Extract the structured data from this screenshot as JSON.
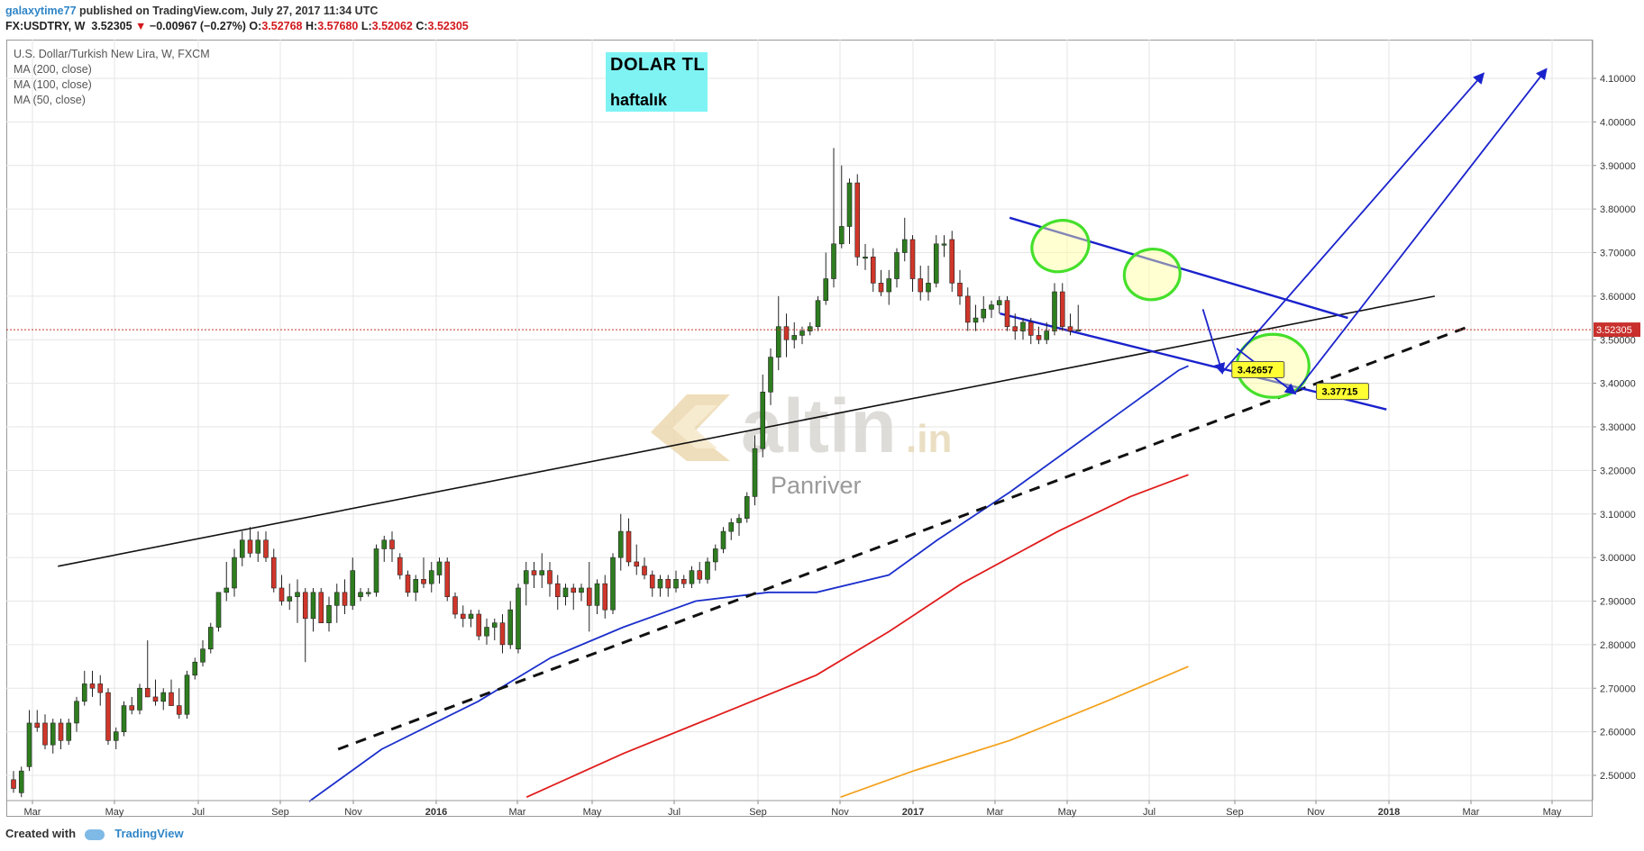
{
  "header": {
    "author": "galaxytime77",
    "published": "published on TradingView.com, July 27, 2017 11:34 UTC"
  },
  "quote": {
    "symbol": "FX:USDTRY, W",
    "last": "3.52305",
    "arrow": "▼",
    "change": "−0.00967 (−0.27%)",
    "o_label": "O:",
    "o": "3.52768",
    "h_label": "H:",
    "h": "3.57680",
    "l_label": "L:",
    "l": "3.52062",
    "c_label": "C:",
    "c": "3.52305"
  },
  "legend": {
    "title": "U.S. Dollar/Turkish New Lira, W, FXCM",
    "ma200": "MA (200, close)",
    "ma100": "MA (100, close)",
    "ma50": "MA (50, close)"
  },
  "annotation": {
    "line1": "DOLAR  TL",
    "line2": "haftalık"
  },
  "footer": {
    "created_with": "Created with",
    "brand": "TradingView"
  },
  "watermark": {
    "brand": "altin",
    "suffix": ".in",
    "sub": "Panriver"
  },
  "colors": {
    "up": "#2e7d1f",
    "down": "#d0362a",
    "ma50": "#1b2fcc",
    "ma100": "#e01c1c",
    "ma200": "#f4a21e",
    "drawing": "#1a22cc",
    "highlight": "#45e02b",
    "price_line": "#c0392b"
  },
  "chart_data": {
    "type": "candlestick",
    "symbol": "FX:USDTRY",
    "interval": "W",
    "y_axis": {
      "min": 2.45,
      "max": 4.15,
      "ticks": [
        "2.50000",
        "2.60000",
        "2.70000",
        "2.80000",
        "2.90000",
        "3.00000",
        "3.10000",
        "3.20000",
        "3.30000",
        "3.40000",
        "3.50000",
        "3.60000",
        "3.70000",
        "3.80000",
        "3.90000",
        "4.00000",
        "4.10000"
      ],
      "last_price_label": "3.52305"
    },
    "x_axis": {
      "labels": [
        "Mar",
        "May",
        "Jul",
        "Sep",
        "Nov",
        "2016",
        "Mar",
        "May",
        "Jul",
        "Sep",
        "Nov",
        "2017",
        "Mar",
        "May",
        "Jul",
        "Sep",
        "Nov",
        "2018",
        "Mar",
        "May"
      ],
      "bold_labels": [
        "2016",
        "2017",
        "2018"
      ]
    },
    "candles": [
      {
        "o": 2.49,
        "h": 2.51,
        "l": 2.46,
        "c": 2.47
      },
      {
        "o": 2.46,
        "h": 2.52,
        "l": 2.45,
        "c": 2.51
      },
      {
        "o": 2.52,
        "h": 2.65,
        "l": 2.51,
        "c": 2.62
      },
      {
        "o": 2.62,
        "h": 2.65,
        "l": 2.6,
        "c": 2.61
      },
      {
        "o": 2.62,
        "h": 2.64,
        "l": 2.56,
        "c": 2.57
      },
      {
        "o": 2.57,
        "h": 2.63,
        "l": 2.55,
        "c": 2.62
      },
      {
        "o": 2.62,
        "h": 2.63,
        "l": 2.56,
        "c": 2.58
      },
      {
        "o": 2.58,
        "h": 2.63,
        "l": 2.57,
        "c": 2.62
      },
      {
        "o": 2.62,
        "h": 2.68,
        "l": 2.6,
        "c": 2.67
      },
      {
        "o": 2.67,
        "h": 2.74,
        "l": 2.66,
        "c": 2.71
      },
      {
        "o": 2.71,
        "h": 2.74,
        "l": 2.68,
        "c": 2.7
      },
      {
        "o": 2.71,
        "h": 2.73,
        "l": 2.66,
        "c": 2.69
      },
      {
        "o": 2.69,
        "h": 2.7,
        "l": 2.57,
        "c": 2.58
      },
      {
        "o": 2.58,
        "h": 2.61,
        "l": 2.56,
        "c": 2.6
      },
      {
        "o": 2.6,
        "h": 2.67,
        "l": 2.59,
        "c": 2.66
      },
      {
        "o": 2.66,
        "h": 2.68,
        "l": 2.64,
        "c": 2.65
      },
      {
        "o": 2.65,
        "h": 2.71,
        "l": 2.64,
        "c": 2.7
      },
      {
        "o": 2.7,
        "h": 2.81,
        "l": 2.68,
        "c": 2.68
      },
      {
        "o": 2.68,
        "h": 2.72,
        "l": 2.66,
        "c": 2.67
      },
      {
        "o": 2.67,
        "h": 2.7,
        "l": 2.65,
        "c": 2.69
      },
      {
        "o": 2.69,
        "h": 2.72,
        "l": 2.66,
        "c": 2.66
      },
      {
        "o": 2.66,
        "h": 2.7,
        "l": 2.63,
        "c": 2.64
      },
      {
        "o": 2.64,
        "h": 2.74,
        "l": 2.63,
        "c": 2.73
      },
      {
        "o": 2.73,
        "h": 2.77,
        "l": 2.72,
        "c": 2.76
      },
      {
        "o": 2.76,
        "h": 2.81,
        "l": 2.75,
        "c": 2.79
      },
      {
        "o": 2.79,
        "h": 2.85,
        "l": 2.78,
        "c": 2.84
      },
      {
        "o": 2.84,
        "h": 2.92,
        "l": 2.83,
        "c": 2.92
      },
      {
        "o": 2.92,
        "h": 2.99,
        "l": 2.9,
        "c": 2.93
      },
      {
        "o": 2.93,
        "h": 3.02,
        "l": 2.91,
        "c": 3.0
      },
      {
        "o": 3.0,
        "h": 3.06,
        "l": 2.98,
        "c": 3.04
      },
      {
        "o": 3.04,
        "h": 3.07,
        "l": 3.0,
        "c": 3.01
      },
      {
        "o": 3.01,
        "h": 3.06,
        "l": 2.99,
        "c": 3.04
      },
      {
        "o": 3.04,
        "h": 3.06,
        "l": 2.99,
        "c": 3.0
      },
      {
        "o": 3.0,
        "h": 3.02,
        "l": 2.92,
        "c": 2.93
      },
      {
        "o": 2.93,
        "h": 2.96,
        "l": 2.89,
        "c": 2.9
      },
      {
        "o": 2.9,
        "h": 2.94,
        "l": 2.88,
        "c": 2.91
      },
      {
        "o": 2.91,
        "h": 2.95,
        "l": 2.85,
        "c": 2.92
      },
      {
        "o": 2.92,
        "h": 2.93,
        "l": 2.76,
        "c": 2.86
      },
      {
        "o": 2.86,
        "h": 2.93,
        "l": 2.83,
        "c": 2.92
      },
      {
        "o": 2.92,
        "h": 2.93,
        "l": 2.85,
        "c": 2.85
      },
      {
        "o": 2.85,
        "h": 2.91,
        "l": 2.83,
        "c": 2.89
      },
      {
        "o": 2.89,
        "h": 2.94,
        "l": 2.85,
        "c": 2.92
      },
      {
        "o": 2.92,
        "h": 2.95,
        "l": 2.87,
        "c": 2.89
      },
      {
        "o": 2.89,
        "h": 3.0,
        "l": 2.88,
        "c": 2.97
      },
      {
        "o": 2.91,
        "h": 2.93,
        "l": 2.9,
        "c": 2.92
      },
      {
        "o": 2.92,
        "h": 2.93,
        "l": 2.91,
        "c": 2.92
      },
      {
        "o": 2.92,
        "h": 3.03,
        "l": 2.91,
        "c": 3.02
      },
      {
        "o": 3.02,
        "h": 3.05,
        "l": 2.99,
        "c": 3.04
      },
      {
        "o": 3.04,
        "h": 3.06,
        "l": 2.99,
        "c": 3.02
      },
      {
        "o": 3.0,
        "h": 3.01,
        "l": 2.95,
        "c": 2.96
      },
      {
        "o": 2.96,
        "h": 2.97,
        "l": 2.91,
        "c": 2.92
      },
      {
        "o": 2.92,
        "h": 2.96,
        "l": 2.9,
        "c": 2.95
      },
      {
        "o": 2.95,
        "h": 3.0,
        "l": 2.93,
        "c": 2.94
      },
      {
        "o": 2.94,
        "h": 2.99,
        "l": 2.92,
        "c": 2.97
      },
      {
        "o": 2.96,
        "h": 3.0,
        "l": 2.94,
        "c": 2.99
      },
      {
        "o": 2.99,
        "h": 3.0,
        "l": 2.9,
        "c": 2.91
      },
      {
        "o": 2.91,
        "h": 2.92,
        "l": 2.86,
        "c": 2.87
      },
      {
        "o": 2.87,
        "h": 2.89,
        "l": 2.84,
        "c": 2.86
      },
      {
        "o": 2.86,
        "h": 2.88,
        "l": 2.84,
        "c": 2.87
      },
      {
        "o": 2.87,
        "h": 2.88,
        "l": 2.81,
        "c": 2.82
      },
      {
        "o": 2.82,
        "h": 2.86,
        "l": 2.8,
        "c": 2.84
      },
      {
        "o": 2.84,
        "h": 2.86,
        "l": 2.81,
        "c": 2.85
      },
      {
        "o": 2.85,
        "h": 2.87,
        "l": 2.78,
        "c": 2.8
      },
      {
        "o": 2.8,
        "h": 2.9,
        "l": 2.79,
        "c": 2.88
      },
      {
        "o": 2.79,
        "h": 2.94,
        "l": 2.78,
        "c": 2.93
      },
      {
        "o": 2.94,
        "h": 2.99,
        "l": 2.89,
        "c": 2.97
      },
      {
        "o": 2.97,
        "h": 2.99,
        "l": 2.93,
        "c": 2.96
      },
      {
        "o": 2.96,
        "h": 3.01,
        "l": 2.93,
        "c": 2.97
      },
      {
        "o": 2.97,
        "h": 2.99,
        "l": 2.91,
        "c": 2.94
      },
      {
        "o": 2.94,
        "h": 2.96,
        "l": 2.88,
        "c": 2.91
      },
      {
        "o": 2.91,
        "h": 2.94,
        "l": 2.89,
        "c": 2.93
      },
      {
        "o": 2.93,
        "h": 2.94,
        "l": 2.88,
        "c": 2.92
      },
      {
        "o": 2.92,
        "h": 2.94,
        "l": 2.9,
        "c": 2.93
      },
      {
        "o": 2.93,
        "h": 2.99,
        "l": 2.83,
        "c": 2.89
      },
      {
        "o": 2.89,
        "h": 2.95,
        "l": 2.87,
        "c": 2.94
      },
      {
        "o": 2.94,
        "h": 2.96,
        "l": 2.86,
        "c": 2.88
      },
      {
        "o": 2.88,
        "h": 3.01,
        "l": 2.87,
        "c": 3.0
      },
      {
        "o": 3.0,
        "h": 3.1,
        "l": 2.97,
        "c": 3.06
      },
      {
        "o": 3.06,
        "h": 3.09,
        "l": 2.98,
        "c": 2.99
      },
      {
        "o": 2.99,
        "h": 3.03,
        "l": 2.96,
        "c": 2.98
      },
      {
        "o": 2.98,
        "h": 3.0,
        "l": 2.95,
        "c": 2.96
      },
      {
        "o": 2.96,
        "h": 2.97,
        "l": 2.91,
        "c": 2.93
      },
      {
        "o": 2.93,
        "h": 2.96,
        "l": 2.91,
        "c": 2.95
      },
      {
        "o": 2.95,
        "h": 2.96,
        "l": 2.91,
        "c": 2.93
      },
      {
        "o": 2.93,
        "h": 2.97,
        "l": 2.92,
        "c": 2.95
      },
      {
        "o": 2.95,
        "h": 2.96,
        "l": 2.93,
        "c": 2.94
      },
      {
        "o": 2.94,
        "h": 2.98,
        "l": 2.93,
        "c": 2.97
      },
      {
        "o": 2.97,
        "h": 2.99,
        "l": 2.94,
        "c": 2.95
      },
      {
        "o": 2.95,
        "h": 3.0,
        "l": 2.94,
        "c": 2.99
      },
      {
        "o": 2.99,
        "h": 3.03,
        "l": 2.97,
        "c": 3.02
      },
      {
        "o": 3.02,
        "h": 3.07,
        "l": 3.01,
        "c": 3.06
      },
      {
        "o": 3.06,
        "h": 3.09,
        "l": 3.04,
        "c": 3.08
      },
      {
        "o": 3.08,
        "h": 3.1,
        "l": 3.05,
        "c": 3.09
      },
      {
        "o": 3.09,
        "h": 3.15,
        "l": 3.08,
        "c": 3.14
      },
      {
        "o": 3.14,
        "h": 3.28,
        "l": 3.12,
        "c": 3.25
      },
      {
        "o": 3.25,
        "h": 3.42,
        "l": 3.23,
        "c": 3.38
      },
      {
        "o": 3.38,
        "h": 3.48,
        "l": 3.35,
        "c": 3.46
      },
      {
        "o": 3.46,
        "h": 3.6,
        "l": 3.43,
        "c": 3.53
      },
      {
        "o": 3.53,
        "h": 3.56,
        "l": 3.46,
        "c": 3.5
      },
      {
        "o": 3.5,
        "h": 3.54,
        "l": 3.48,
        "c": 3.51
      },
      {
        "o": 3.51,
        "h": 3.53,
        "l": 3.49,
        "c": 3.52
      },
      {
        "o": 3.52,
        "h": 3.54,
        "l": 3.51,
        "c": 3.53
      },
      {
        "o": 3.53,
        "h": 3.6,
        "l": 3.52,
        "c": 3.59
      },
      {
        "o": 3.59,
        "h": 3.7,
        "l": 3.58,
        "c": 3.64
      },
      {
        "o": 3.64,
        "h": 3.94,
        "l": 3.62,
        "c": 3.72
      },
      {
        "o": 3.72,
        "h": 3.9,
        "l": 3.71,
        "c": 3.76
      },
      {
        "o": 3.76,
        "h": 3.87,
        "l": 3.72,
        "c": 3.86
      },
      {
        "o": 3.86,
        "h": 3.88,
        "l": 3.67,
        "c": 3.69
      },
      {
        "o": 3.69,
        "h": 3.72,
        "l": 3.66,
        "c": 3.69
      },
      {
        "o": 3.69,
        "h": 3.71,
        "l": 3.61,
        "c": 3.63
      },
      {
        "o": 3.63,
        "h": 3.66,
        "l": 3.6,
        "c": 3.61
      },
      {
        "o": 3.61,
        "h": 3.66,
        "l": 3.58,
        "c": 3.64
      },
      {
        "o": 3.64,
        "h": 3.71,
        "l": 3.62,
        "c": 3.7
      },
      {
        "o": 3.7,
        "h": 3.78,
        "l": 3.68,
        "c": 3.73
      },
      {
        "o": 3.73,
        "h": 3.74,
        "l": 3.61,
        "c": 3.64
      },
      {
        "o": 3.64,
        "h": 3.67,
        "l": 3.59,
        "c": 3.61
      },
      {
        "o": 3.61,
        "h": 3.67,
        "l": 3.59,
        "c": 3.63
      },
      {
        "o": 3.63,
        "h": 3.74,
        "l": 3.62,
        "c": 3.72
      },
      {
        "o": 3.72,
        "h": 3.74,
        "l": 3.69,
        "c": 3.72
      },
      {
        "o": 3.73,
        "h": 3.75,
        "l": 3.61,
        "c": 3.63
      },
      {
        "o": 3.63,
        "h": 3.66,
        "l": 3.58,
        "c": 3.6
      },
      {
        "o": 3.6,
        "h": 3.62,
        "l": 3.52,
        "c": 3.54
      },
      {
        "o": 3.54,
        "h": 3.58,
        "l": 3.52,
        "c": 3.55
      },
      {
        "o": 3.55,
        "h": 3.6,
        "l": 3.54,
        "c": 3.57
      },
      {
        "o": 3.57,
        "h": 3.59,
        "l": 3.55,
        "c": 3.58
      },
      {
        "o": 3.58,
        "h": 3.6,
        "l": 3.56,
        "c": 3.59
      },
      {
        "o": 3.59,
        "h": 3.6,
        "l": 3.52,
        "c": 3.53
      },
      {
        "o": 3.53,
        "h": 3.56,
        "l": 3.5,
        "c": 3.52
      },
      {
        "o": 3.52,
        "h": 3.55,
        "l": 3.5,
        "c": 3.54
      },
      {
        "o": 3.54,
        "h": 3.55,
        "l": 3.49,
        "c": 3.51
      },
      {
        "o": 3.51,
        "h": 3.53,
        "l": 3.49,
        "c": 3.5
      },
      {
        "o": 3.5,
        "h": 3.54,
        "l": 3.49,
        "c": 3.52
      },
      {
        "o": 3.52,
        "h": 3.63,
        "l": 3.51,
        "c": 3.61
      },
      {
        "o": 3.61,
        "h": 3.63,
        "l": 3.52,
        "c": 3.53
      },
      {
        "o": 3.53,
        "h": 3.56,
        "l": 3.51,
        "c": 3.52
      },
      {
        "o": 3.52,
        "h": 3.58,
        "l": 3.52,
        "c": 3.523
      }
    ],
    "moving_averages": [
      {
        "name": "MA (50, close)",
        "points": [
          [
            2015.75,
            2.44
          ],
          [
            2015.9,
            2.56
          ],
          [
            2016.1,
            2.67
          ],
          [
            2016.25,
            2.77
          ],
          [
            2016.4,
            2.84
          ],
          [
            2016.55,
            2.9
          ],
          [
            2016.7,
            2.92
          ],
          [
            2016.8,
            2.92
          ],
          [
            2016.95,
            2.96
          ],
          [
            2017.05,
            3.04
          ],
          [
            2017.2,
            3.15
          ],
          [
            2017.35,
            3.27
          ],
          [
            2017.45,
            3.35
          ],
          [
            2017.55,
            3.43
          ],
          [
            2017.57,
            3.44
          ]
        ]
      },
      {
        "name": "MA (100, close)",
        "points": [
          [
            2016.2,
            2.45
          ],
          [
            2016.4,
            2.55
          ],
          [
            2016.6,
            2.64
          ],
          [
            2016.8,
            2.73
          ],
          [
            2016.95,
            2.83
          ],
          [
            2017.1,
            2.94
          ],
          [
            2017.3,
            3.06
          ],
          [
            2017.45,
            3.14
          ],
          [
            2017.57,
            3.19
          ]
        ]
      },
      {
        "name": "MA (200, close)",
        "points": [
          [
            2016.85,
            2.45
          ],
          [
            2017.0,
            2.51
          ],
          [
            2017.2,
            2.58
          ],
          [
            2017.4,
            2.67
          ],
          [
            2017.57,
            2.75
          ]
        ]
      }
    ],
    "trendlines": [
      {
        "kind": "support-solid",
        "from": [
          2015.23,
          2.98
        ],
        "to": [
          2018.08,
          3.6
        ]
      },
      {
        "kind": "support-dashed",
        "from": [
          2015.81,
          2.56
        ],
        "to": [
          2018.15,
          3.53
        ]
      },
      {
        "kind": "channel-upper",
        "from": [
          2017.2,
          3.78
        ],
        "to": [
          2017.9,
          3.55
        ]
      },
      {
        "kind": "channel-lower",
        "from": [
          2017.18,
          3.56
        ],
        "to": [
          2017.98,
          3.34
        ]
      }
    ],
    "price_labels": [
      "3.42657",
      "3.37715"
    ]
  }
}
